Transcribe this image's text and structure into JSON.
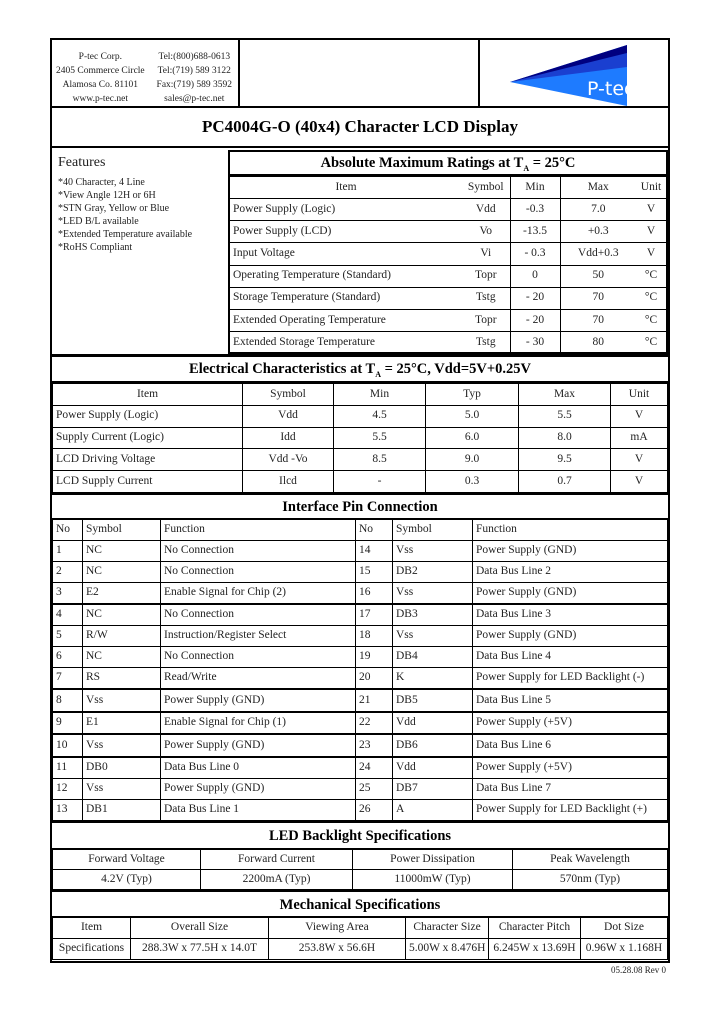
{
  "company": {
    "address": [
      "P-tec Corp.",
      "2405 Commerce Circle",
      "Alamosa Co. 81101",
      "www.p-tec.net"
    ],
    "contact": [
      "Tel:(800)688-0613",
      "Tel:(719) 589 3122",
      "Fax:(719) 589 3592",
      "sales@p-tec.net"
    ],
    "logo_text": "P-tec",
    "logo_colors": [
      "#000080",
      "#1a3fd0",
      "#1e7bff"
    ]
  },
  "title": "PC4004G-O (40x4) Character LCD Display",
  "features": {
    "heading": "Features",
    "items": [
      "*40 Character, 4 Line",
      "*View Angle 12H or 6H",
      "*STN Gray, Yellow or Blue",
      "*LED B/L available",
      "*Extended Temperature available",
      "*RoHS Compliant"
    ]
  },
  "abs_max": {
    "title": "Absolute Maximum Ratings at T",
    "title_sub": "A",
    "title_end": " = 25°C",
    "headers": [
      "Item",
      "Symbol",
      "Min",
      "Max",
      "Unit"
    ],
    "rows": [
      [
        "Power Supply (Logic)",
        "Vdd",
        "-0.3",
        "7.0",
        "V"
      ],
      [
        "Power Supply (LCD)",
        "Vo",
        "-13.5",
        "+0.3",
        "V"
      ],
      [
        "Input Voltage",
        "Vi",
        "- 0.3",
        "Vdd+0.3",
        "V"
      ],
      [
        "Operating Temperature (Standard)",
        "Topr",
        "0",
        "50",
        "°C"
      ],
      [
        "Storage Temperature (Standard)",
        "Tstg",
        "- 20",
        "70",
        "°C"
      ],
      [
        "Extended Operating Temperature",
        "Topr",
        "- 20",
        "70",
        "°C"
      ],
      [
        "Extended Storage Temperature",
        "Tstg",
        "- 30",
        "80",
        "°C"
      ]
    ]
  },
  "electrical": {
    "title": "Electrical Characteristics at T",
    "title_sub": "A",
    "title_end": " = 25°C, Vdd=5V+0.25V",
    "headers": [
      "Item",
      "Symbol",
      "Min",
      "Typ",
      "Max",
      "Unit"
    ],
    "rows": [
      [
        "Power Supply (Logic)",
        "Vdd",
        "4.5",
        "5.0",
        "5.5",
        "V"
      ],
      [
        "Supply Current (Logic)",
        "Idd",
        "5.5",
        "6.0",
        "8.0",
        "mA"
      ],
      [
        "LCD Driving Voltage",
        "Vdd -Vo",
        "8.5",
        "9.0",
        "9.5",
        "V"
      ],
      [
        "LCD Supply Current",
        "Ilcd",
        "-",
        "0.3",
        "0.7",
        "V"
      ]
    ]
  },
  "interface": {
    "title": "Interface Pin Connection",
    "headers": [
      "No",
      "Symbol",
      "Function",
      "No",
      "Symbol",
      "Function"
    ],
    "rows": [
      [
        "1",
        "NC",
        "No Connection",
        "14",
        "Vss",
        "Power Supply (GND)"
      ],
      [
        "2",
        "NC",
        "No Connection",
        "15",
        "DB2",
        "Data Bus Line 2"
      ],
      [
        "3",
        "E2",
        "Enable Signal for Chip (2)",
        "16",
        "Vss",
        "Power Supply (GND)"
      ],
      [
        "4",
        "NC",
        "No Connection",
        "17",
        "DB3",
        "Data Bus Line 3"
      ],
      [
        "5",
        "R/W",
        "Instruction/Register Select",
        "18",
        "Vss",
        "Power Supply (GND)"
      ],
      [
        "6",
        "NC",
        "No Connection",
        "19",
        "DB4",
        "Data Bus Line 4"
      ],
      [
        "7",
        "RS",
        "Read/Write",
        "20",
        "K",
        "Power Supply for LED Backlight (-)"
      ],
      [
        "8",
        "Vss",
        "Power Supply (GND)",
        "21",
        "DB5",
        "Data Bus Line 5"
      ],
      [
        "9",
        "E1",
        "Enable Signal for Chip (1)",
        "22",
        "Vdd",
        "Power Supply (+5V)"
      ],
      [
        "10",
        "Vss",
        "Power Supply (GND)",
        "23",
        "DB6",
        "Data Bus Line 6"
      ],
      [
        "11",
        "DB0",
        "Data Bus Line 0",
        "24",
        "Vdd",
        "Power Supply (+5V)"
      ],
      [
        "12",
        "Vss",
        "Power Supply (GND)",
        "25",
        "DB7",
        "Data Bus Line 7"
      ],
      [
        "13",
        "DB1",
        "Data Bus Line 1",
        "26",
        "A",
        "Power Supply for LED Backlight (+)"
      ]
    ]
  },
  "led": {
    "title": "LED Backlight Specifications",
    "headers": [
      "Forward Voltage",
      "Forward Current",
      "Power Dissipation",
      "Peak Wavelength"
    ],
    "values": [
      "4.2V (Typ)",
      "2200mA (Typ)",
      "11000mW (Typ)",
      "570nm (Typ)"
    ]
  },
  "mechanical": {
    "title": "Mechanical Specifications",
    "headers": [
      "Item",
      "Overall Size",
      "Viewing Area",
      "Character Size",
      "Character Pitch",
      "Dot Size"
    ],
    "values": [
      "Specifications",
      "288.3W x 77.5H x 14.0T",
      "253.8W x 56.6H",
      "5.00W x 8.476H",
      "6.245W x 13.69H",
      "0.96W x 1.168H"
    ]
  },
  "footer": "05.28.08  Rev 0"
}
